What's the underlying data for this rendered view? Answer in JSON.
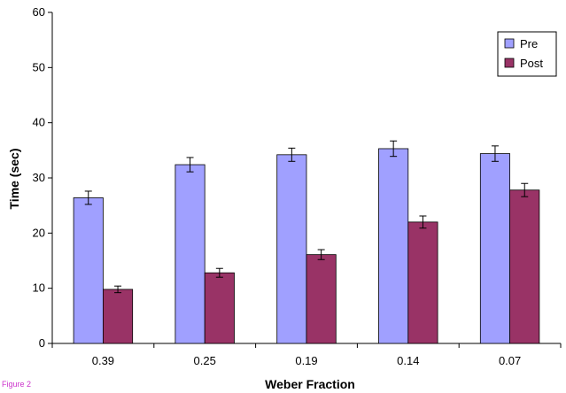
{
  "figure_label": "Figure 2",
  "chart_data": {
    "type": "bar",
    "xlabel": "Weber Fraction",
    "ylabel": "Time (sec)",
    "categories": [
      "0.39",
      "0.25",
      "0.19",
      "0.14",
      "0.07"
    ],
    "ylim": [
      0,
      60
    ],
    "yticks": [
      0,
      10,
      20,
      30,
      40,
      50,
      60
    ],
    "grid": false,
    "legend_position": "top-right",
    "series": [
      {
        "name": "Pre",
        "color": "#a0a0ff",
        "values": [
          26.4,
          32.4,
          34.2,
          35.3,
          34.4
        ],
        "errors": [
          1.2,
          1.3,
          1.2,
          1.4,
          1.4
        ]
      },
      {
        "name": "Post",
        "color": "#993366",
        "values": [
          9.8,
          12.8,
          16.1,
          22.0,
          27.8
        ],
        "errors": [
          0.6,
          0.8,
          0.9,
          1.1,
          1.2
        ]
      }
    ]
  }
}
